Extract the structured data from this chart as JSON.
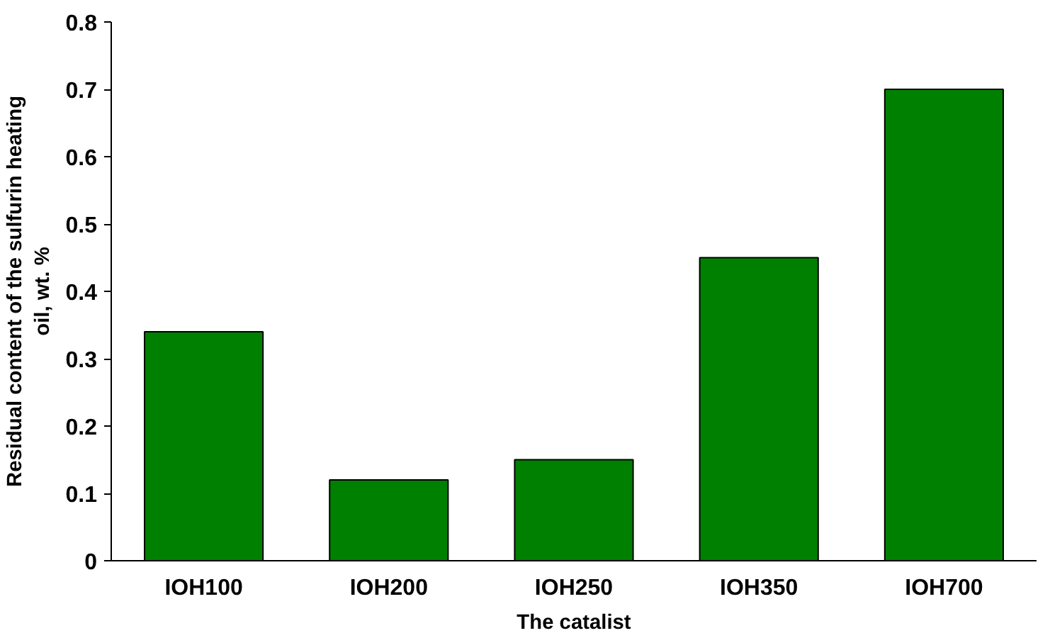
{
  "chart_data": {
    "type": "bar",
    "xlabel": "The catalist",
    "ylabel": "Residual content of the sulfurin heating oil, wt. %",
    "categories": [
      "IOH100",
      "IOH200",
      "IOH250",
      "IOH350",
      "IOH700"
    ],
    "values": [
      0.34,
      0.12,
      0.15,
      0.45,
      0.7
    ],
    "color": "#008000",
    "ylim": [
      0,
      0.8
    ],
    "yticks": [
      0,
      0.1,
      0.2,
      0.3,
      0.4,
      0.5,
      0.6,
      0.7,
      0.8
    ],
    "grid": false
  }
}
